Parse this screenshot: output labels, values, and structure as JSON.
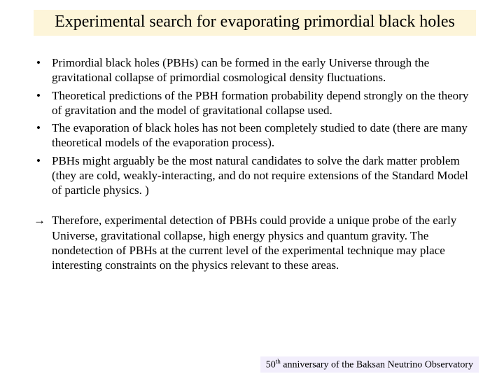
{
  "title": "Experimental search for evaporating primordial black holes",
  "bullets": [
    "Primordial black holes (PBHs) can be formed in the early Universe through the gravitational collapse of primordial cosmological density fluctuations.",
    "Theoretical predictions of the PBH formation probability depend strongly on the theory of gravitation and the model of gravitational collapse used.",
    "The evaporation of black holes has not been completely studied to date (there are many theoretical models of the evaporation process).",
    "PBHs might arguably be the most natural candidates to solve the dark matter problem  (they are cold, weakly-interacting, and do not require extensions of the Standard Model of particle physics. )"
  ],
  "conclusion_mark": "→",
  "conclusion": "Therefore, experimental detection of PBHs could provide a unique probe of the early Universe, gravitational collapse, high energy physics and quantum gravity. The nondetection of PBHs at the current level of the experimental technique may place interesting constraints on the physics relevant to these areas.",
  "footer_prefix": "50",
  "footer_sup": "th",
  "footer_rest": " anniversary of the Baksan Neutrino Observatory",
  "colors": {
    "title_bg": "#fdf5d9",
    "footer_bg": "#f2eefc",
    "text": "#000000",
    "page_bg": "#ffffff"
  }
}
